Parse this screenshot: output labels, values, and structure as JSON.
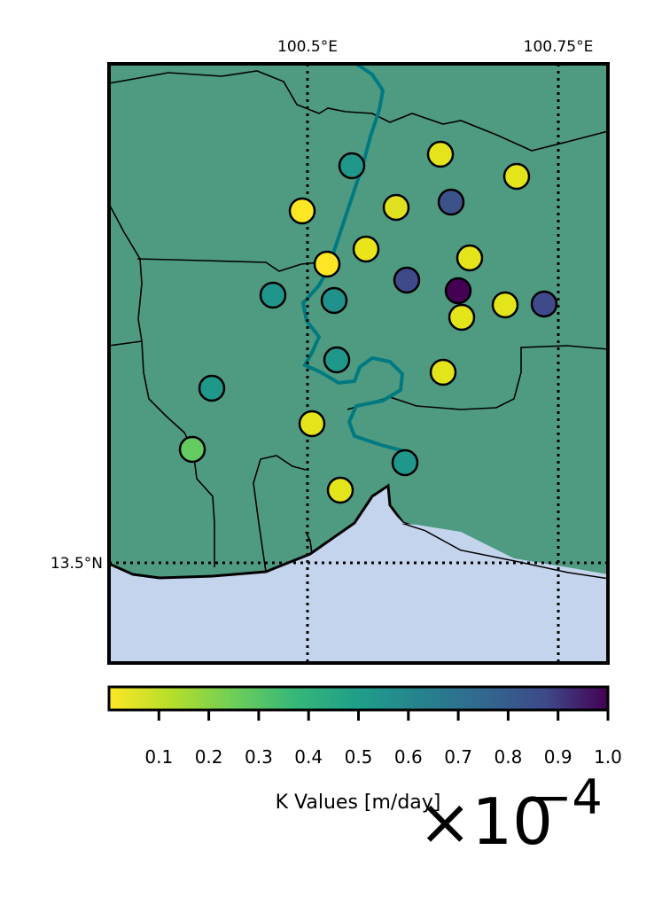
{
  "map": {
    "lon_labels": [
      "100.5°E",
      "100.75°E"
    ],
    "lat_labels": [
      "13.5°N"
    ],
    "land_color": "#4f9b82",
    "sea_color": "#c4d4ec",
    "river_color": "#007a80",
    "gridline_style": "dotted"
  },
  "colorbar": {
    "label": "K Values [m/day]",
    "ticks": [
      "0.1",
      "0.2",
      "0.3",
      "0.4",
      "0.5",
      "0.6",
      "0.7",
      "0.8",
      "0.9",
      "1.0"
    ],
    "exponent_base": "×10",
    "exponent_power": "−4",
    "colormap": "viridis_r",
    "range": [
      0.0,
      1.0
    ]
  },
  "stations": [
    {
      "k": 0.02,
      "color": "#e3e41a"
    },
    {
      "k": 0.45,
      "color": "#1f978b"
    },
    {
      "k": 0.02,
      "color": "#e3e41a"
    },
    {
      "k": 0.77,
      "color": "#3b528b"
    },
    {
      "k": 0.01,
      "color": "#fde725"
    },
    {
      "k": 0.04,
      "color": "#e0e220"
    },
    {
      "k": 0.02,
      "color": "#eae51a"
    },
    {
      "k": 0.03,
      "color": "#e3e41a"
    },
    {
      "k": 0.01,
      "color": "#fde725"
    },
    {
      "k": 0.46,
      "color": "#1f968b"
    },
    {
      "k": 0.49,
      "color": "#21918c"
    },
    {
      "k": 0.8,
      "color": "#3e4a89"
    },
    {
      "k": 1.0,
      "color": "#440154"
    },
    {
      "k": 0.02,
      "color": "#e3e41a"
    },
    {
      "k": 0.03,
      "color": "#e3e41a"
    },
    {
      "k": 0.79,
      "color": "#3e4a89"
    },
    {
      "k": 0.45,
      "color": "#1f978b"
    },
    {
      "k": 0.02,
      "color": "#e3e41a"
    },
    {
      "k": 0.45,
      "color": "#1f978b"
    },
    {
      "k": 0.03,
      "color": "#e3e41a"
    },
    {
      "k": 0.2,
      "color": "#63cb5f"
    },
    {
      "k": 0.45,
      "color": "#1f978b"
    },
    {
      "k": 0.03,
      "color": "#e3e41a"
    }
  ]
}
